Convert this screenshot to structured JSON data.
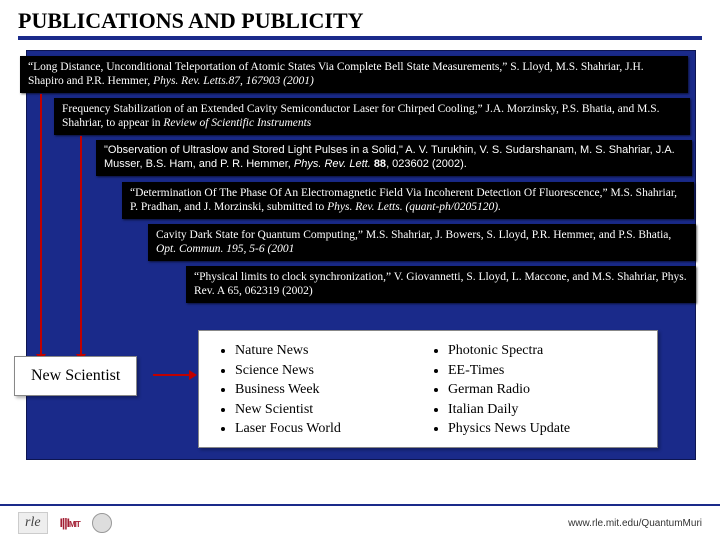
{
  "title": "PUBLICATIONS AND PUBLICITY",
  "pubs": [
    {
      "html": "“Long Distance, Unconditional Teleportation of Atomic States Via Complete Bell State Measurements,” S. Lloyd, M.S. Shahriar, J.H. Shapiro and P.R. Hemmer, <em>Phys. Rev. Letts.87, 167903 (2001)</em>"
    },
    {
      "html": "Frequency Stabilization of an Extended Cavity Semiconductor Laser for Chirped Cooling,” J.A. Morzinsky, P.S. Bhatia, and M.S. Shahriar, to appear in <em>Review of Scientific Instruments</em>"
    },
    {
      "html": "\"Observation of Ultraslow and Stored Light Pulses in a Solid,\" A. V. Turukhin, V. S. Sudarshanam, M. S. Shahriar, J.A. Musser, B.S. Ham, and P. R. Hemmer, <em>Phys. Rev. Lett.</em> <span class='bold'>88</span>, 023602 (2002)."
    },
    {
      "html": "“Determination Of The Phase Of An Electromagnetic Field Via Incoherent Detection Of Fluorescence,” M.S. Shahriar, P. Pradhan, and J. Morzinski, submitted to <em>Phys. Rev. Letts. (quant-ph/0205120).</em>"
    },
    {
      "html": "Cavity Dark State for Quantum Computing,” M.S. Shahriar, J. Bowers, S. Lloyd, P.R. Hemmer, and P.S. Bhatia, <em>Opt. Commun. 195, 5-6 (2001</em>"
    },
    {
      "html": "“Physical limits to clock synchronization,” V. Giovannetti, S. Lloyd, L. Maccone, and M.S. Shahriar, Phys. Rev. A 65, 062319 (2002)"
    }
  ],
  "ns_label": "New Scientist",
  "press": {
    "col1": [
      "Nature News",
      "Science News",
      "Business Week",
      "New Scientist",
      "Laser Focus World"
    ],
    "col2": [
      "Photonic Spectra",
      "EE-Times",
      "German Radio",
      "Italian Daily",
      "Physics News Update"
    ]
  },
  "footer": {
    "rle": "rle",
    "mit": "MIT",
    "url": "www.rle.mit.edu/QuantumMuri"
  },
  "colors": {
    "accent": "#1a2a8a",
    "arrow": "#c00000"
  }
}
